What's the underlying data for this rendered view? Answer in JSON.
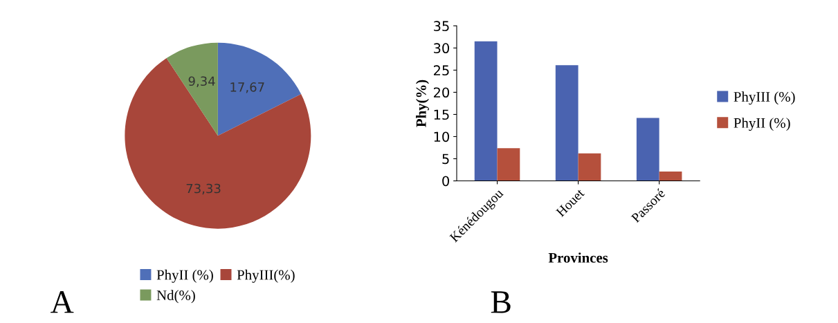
{
  "chart_data": [
    {
      "type": "pie",
      "categories": [
        "PhyII (%)",
        "PhyIII(%)",
        "Nd(%)"
      ],
      "values": [
        17.67,
        73.33,
        9.34
      ],
      "colors": [
        "#4f6fb8",
        "#a8463a",
        "#7a9a5e"
      ],
      "value_labels": [
        "17,67",
        "73,33",
        "9,34"
      ],
      "legend": "bottom",
      "annotations": [
        "A"
      ]
    },
    {
      "type": "bar",
      "xlabel": "Provinces",
      "ylabel": "Phy(%)",
      "categories": [
        "Kénédougou",
        "Houet",
        "Passoré"
      ],
      "ylim": [
        0,
        35
      ],
      "yticks": [
        0,
        5,
        10,
        15,
        20,
        25,
        30,
        35
      ],
      "legend": "right",
      "grid": false,
      "annotations": [
        "B"
      ],
      "series": [
        {
          "name": "PhyIII (%)",
          "color": "#4a63b0",
          "values": [
            31.5,
            26.1,
            14.2
          ]
        },
        {
          "name": "PhyII (%)",
          "color": "#b5503c",
          "values": [
            7.4,
            6.2,
            2.1
          ]
        }
      ]
    }
  ]
}
